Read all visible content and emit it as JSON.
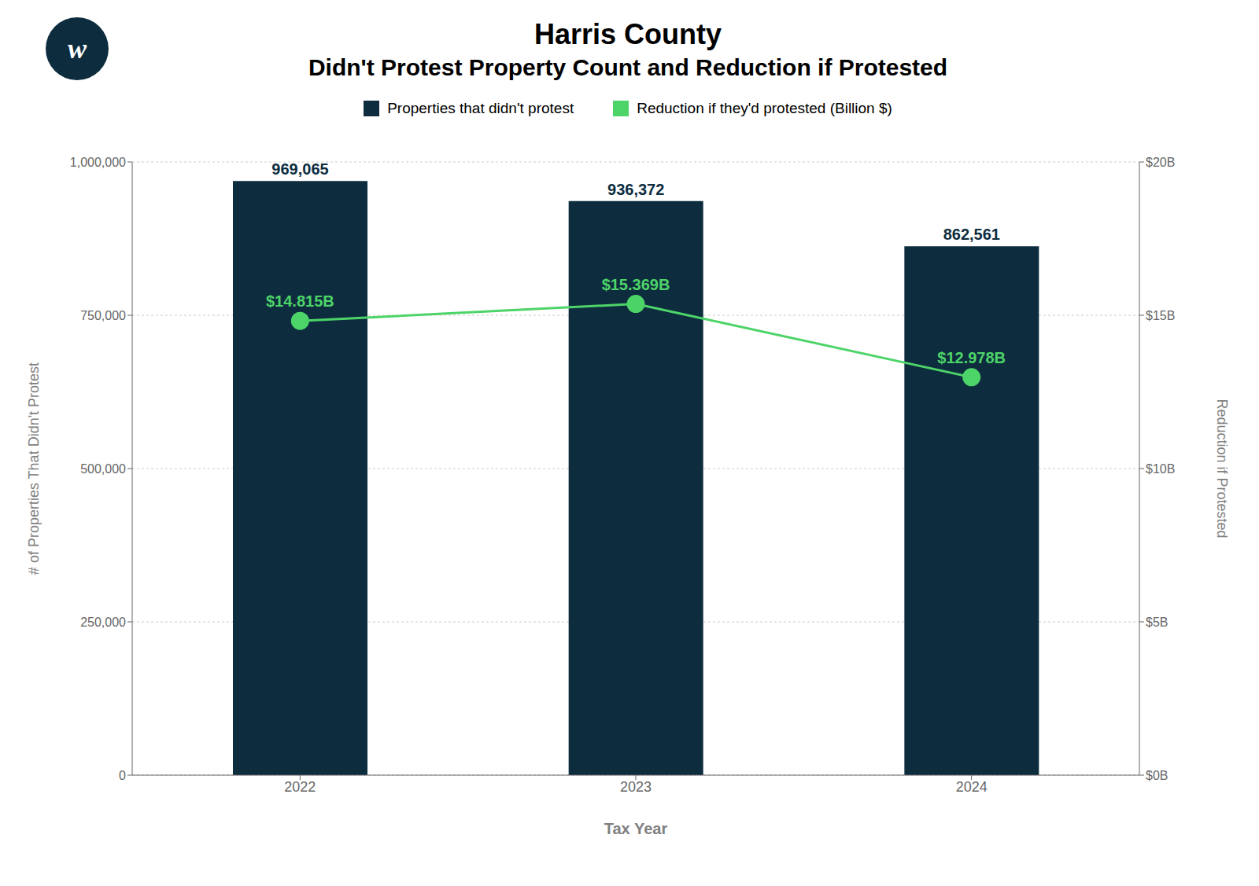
{
  "chart_data": {
    "type": "bar",
    "title": "Harris County",
    "subtitle": "Didn't Protest Property Count and Reduction if Protested",
    "xlabel": "Tax Year",
    "ylabel": "# of Properties That Didn't Protest",
    "y2label": "Reduction if Protested",
    "categories": [
      "2022",
      "2023",
      "2024"
    ],
    "series": [
      {
        "name": "Properties that didn't protest",
        "type": "bar",
        "color": "#0d2d3f",
        "values": [
          969065,
          936372,
          862561
        ],
        "value_labels": [
          "969,065",
          "936,372",
          "862,561"
        ]
      },
      {
        "name": "Reduction if they'd protested (Billion $)",
        "type": "line",
        "axis": "y2",
        "color": "#4dd468",
        "marker": "circle",
        "values": [
          14.815,
          15.369,
          12.978
        ],
        "value_labels": [
          "$14.815B",
          "$15.369B",
          "$12.978B"
        ]
      }
    ],
    "ylim": [
      0,
      1000000
    ],
    "yticks": [
      0,
      {
        "value": 250000,
        "label": "250,000"
      },
      {
        "value": 500000,
        "label": "500,000"
      },
      {
        "value": 750000,
        "label": "750,000"
      },
      {
        "value": 1000000,
        "label": "1,000,000"
      }
    ],
    "y2lim": [
      0,
      20
    ],
    "y2ticks": [
      {
        "value": 0,
        "label": "$0B"
      },
      {
        "value": 5,
        "label": "$5B"
      },
      {
        "value": 10,
        "label": "$10B"
      },
      {
        "value": 15,
        "label": "$15B"
      },
      {
        "value": 20,
        "label": "$20B"
      }
    ],
    "grid": true,
    "data_labels": true,
    "legend": "top",
    "annotations": [
      "w"
    ]
  }
}
